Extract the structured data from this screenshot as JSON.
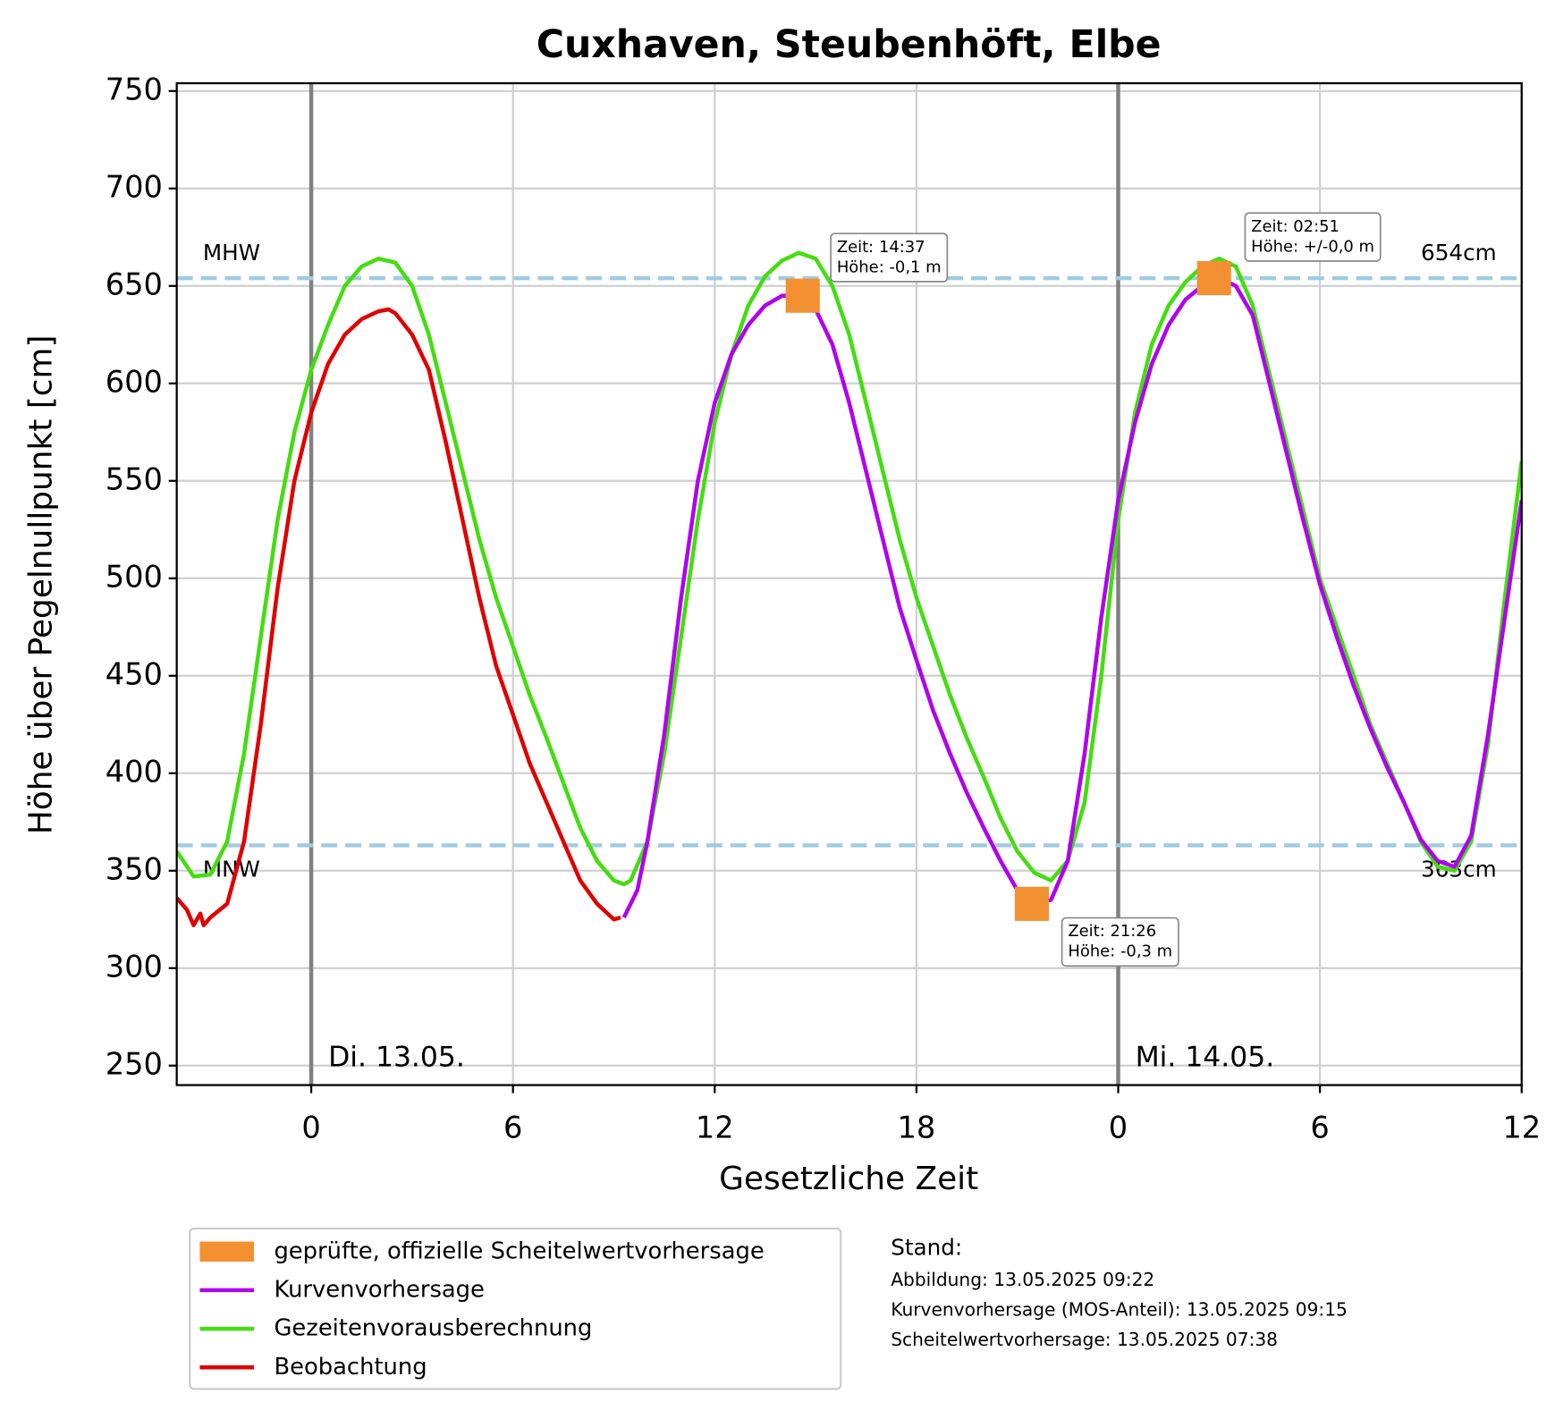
{
  "chart_data": {
    "type": "line",
    "title": "Cuxhaven, Steubenhöft, Elbe",
    "xlabel": "Gesetzliche Zeit",
    "ylabel": "Höhe über Pegelnullpunkt [cm]",
    "xlim": [
      -4,
      36
    ],
    "ylim": [
      240,
      754
    ],
    "xticks": [
      0,
      6,
      12,
      18,
      {
        "value": 24,
        "label": "0"
      },
      {
        "value": 30,
        "label": "6"
      },
      {
        "value": 36,
        "label": "12"
      }
    ],
    "yticks": [
      250,
      300,
      350,
      400,
      450,
      500,
      550,
      600,
      650,
      700,
      750
    ],
    "grid": true,
    "series": [
      {
        "name": "geprüfte, offizielle Scheitelwertvorhersage",
        "type": "scatter",
        "color": "#f39031",
        "x": [
          14.617,
          21.433,
          26.85
        ],
        "values": [
          645,
          333,
          654
        ]
      },
      {
        "name": "Kurvenvorhersage",
        "type": "line",
        "color": "#b000f0",
        "x": [
          9.3,
          9.7,
          10,
          10.5,
          11,
          11.5,
          12,
          12.5,
          13,
          13.5,
          14,
          14.5,
          15,
          15.5,
          16,
          16.5,
          17,
          17.5,
          18,
          18.5,
          19,
          19.5,
          20,
          20.5,
          21,
          21.5,
          22,
          22.5,
          23,
          23.5,
          24,
          24.5,
          25,
          25.5,
          26,
          26.5,
          27,
          27.5,
          28,
          28.5,
          29,
          29.5,
          30,
          30.5,
          31,
          31.5,
          32,
          32.5,
          33,
          33.5,
          34,
          34.5,
          35,
          35.5,
          36
        ],
        "values": [
          326,
          340,
          365,
          420,
          490,
          550,
          590,
          615,
          630,
          640,
          645,
          645,
          638,
          620,
          590,
          555,
          520,
          485,
          458,
          432,
          410,
          390,
          372,
          355,
          340,
          334,
          335,
          355,
          410,
          480,
          540,
          580,
          610,
          630,
          643,
          650,
          654,
          650,
          635,
          600,
          565,
          530,
          497,
          470,
          445,
          423,
          403,
          385,
          366,
          355,
          352,
          368,
          420,
          480,
          540
        ]
      },
      {
        "name": "Gezeitenvorausberechnung",
        "type": "line",
        "color": "#44dd11",
        "x": [
          -4,
          -3.5,
          -3,
          -2.5,
          -2,
          -1.5,
          -1,
          -0.5,
          0,
          0.5,
          1,
          1.5,
          2,
          2.5,
          3,
          3.5,
          4,
          4.5,
          5,
          5.5,
          6,
          6.5,
          7,
          7.5,
          8,
          8.5,
          9,
          9.3,
          9.5,
          10,
          10.5,
          11,
          11.5,
          12,
          12.5,
          13,
          13.5,
          14,
          14.5,
          15,
          15.5,
          16,
          16.5,
          17,
          17.5,
          18,
          18.5,
          19,
          19.5,
          20,
          20.5,
          21,
          21.5,
          22,
          22.5,
          23,
          23.5,
          24,
          24.5,
          25,
          25.5,
          26,
          26.5,
          27,
          27.5,
          28,
          28.5,
          29,
          29.5,
          30,
          30.5,
          31,
          31.5,
          32,
          32.5,
          33,
          33.5,
          34,
          34.5,
          35,
          35.5,
          36
        ],
        "values": [
          360,
          347,
          348,
          365,
          410,
          470,
          530,
          575,
          607,
          630,
          650,
          660,
          664,
          662,
          650,
          625,
          590,
          555,
          520,
          490,
          465,
          440,
          418,
          395,
          372,
          355,
          345,
          343,
          345,
          365,
          410,
          470,
          530,
          580,
          615,
          640,
          655,
          663,
          667,
          664,
          650,
          625,
          590,
          555,
          520,
          490,
          465,
          440,
          418,
          398,
          377,
          360,
          349,
          345,
          355,
          385,
          450,
          530,
          585,
          620,
          640,
          652,
          660,
          664,
          660,
          640,
          605,
          570,
          535,
          500,
          475,
          450,
          425,
          405,
          385,
          365,
          352,
          350,
          365,
          415,
          490,
          560
        ]
      },
      {
        "name": "Beobachtung",
        "type": "line",
        "color": "#e00000",
        "x": [
          -4,
          -3.7,
          -3.5,
          -3.3,
          -3.2,
          -3,
          -2.5,
          -2,
          -1.5,
          -1,
          -0.5,
          0,
          0.5,
          1,
          1.5,
          2,
          2.3,
          2.5,
          3,
          3.5,
          4,
          4.5,
          5,
          5.5,
          6,
          6.5,
          7,
          7.5,
          8,
          8.5,
          9,
          9.2
        ],
        "values": [
          336,
          330,
          322,
          328,
          322,
          326,
          333,
          365,
          425,
          495,
          550,
          585,
          610,
          625,
          633,
          637,
          638,
          636,
          625,
          607,
          570,
          530,
          490,
          455,
          430,
          405,
          385,
          365,
          345,
          333,
          325,
          326
        ]
      }
    ],
    "reference_lines": [
      {
        "value": 654,
        "label": "MHW",
        "value_label": "654cm",
        "color": "#a0cbe4"
      },
      {
        "value": 363,
        "label": "MNW",
        "value_label": "363cm",
        "color": "#a0cbe4"
      }
    ],
    "day_lines": [
      {
        "x": 0,
        "label": "Di. 13.05.",
        "color": "#808080"
      },
      {
        "x": 24,
        "label": "Mi. 14.05.",
        "color": "#808080"
      }
    ],
    "annotations": [
      {
        "lines": [
          "Zeit: 14:37",
          "Höhe: -0,1 m"
        ]
      },
      {
        "lines": [
          "Zeit: 21:26",
          "Höhe: -0,3 m"
        ]
      },
      {
        "lines": [
          "Zeit: 02:51",
          "Höhe: +/-0,0 m"
        ]
      }
    ],
    "stand": {
      "title": "Stand:",
      "lines": [
        "Abbildung: 13.05.2025 09:22",
        "Kurvenvorhersage (MOS-Anteil): 13.05.2025 09:15",
        "Scheitelwertvorhersage: 13.05.2025 07:38"
      ]
    }
  }
}
